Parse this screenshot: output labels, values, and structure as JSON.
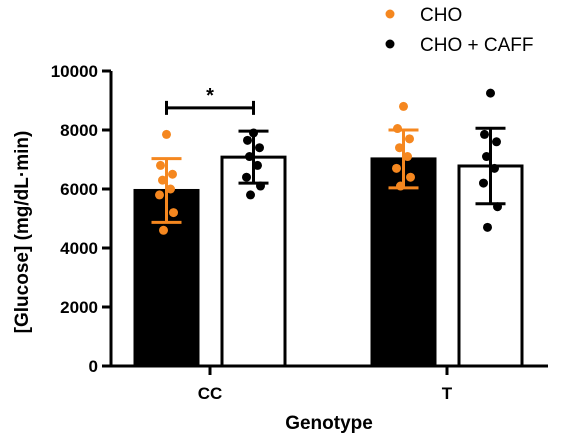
{
  "chart_data": {
    "type": "bar",
    "xlabel": "Genotype",
    "ylabel": "[Glucose] (mg/dL·min)",
    "ylim": [
      0,
      10000
    ],
    "yticks": [
      "0",
      "2000",
      "4000",
      "6000",
      "8000",
      "10000"
    ],
    "categories": [
      "CC",
      "T"
    ],
    "series": [
      {
        "name": "CHO",
        "bar_fill": "#000000",
        "point_color": "#F5871F",
        "errorbar_color": "#F5871F",
        "means": [
          5950,
          7020
        ],
        "sd": [
          1080,
          980
        ],
        "points": [
          [
            7850,
            6800,
            6500,
            6300,
            6000,
            5800,
            5200,
            4600
          ],
          [
            8800,
            8050,
            7700,
            7400,
            7100,
            6700,
            6400,
            6100
          ]
        ]
      },
      {
        "name": "CHO + CAFF",
        "bar_fill": "#FFFFFF",
        "point_color": "#000000",
        "errorbar_color": "#000000",
        "means": [
          7080,
          6780
        ],
        "sd": [
          880,
          1280
        ],
        "points": [
          [
            7900,
            7650,
            7400,
            7100,
            6800,
            6400,
            6100,
            5800
          ],
          [
            9250,
            7850,
            7600,
            7100,
            6700,
            6200,
            5400,
            4700
          ]
        ]
      }
    ],
    "annotations": [
      {
        "type": "significance",
        "text": "*",
        "category": "CC",
        "between": [
          "CHO",
          "CHO + CAFF"
        ],
        "y": 8750
      }
    ],
    "grid": false,
    "legend_position": "top-right"
  }
}
